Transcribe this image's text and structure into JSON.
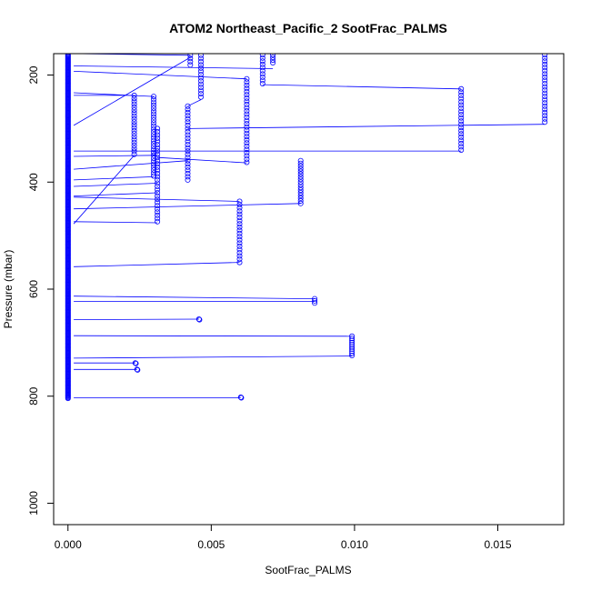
{
  "chart_data": {
    "type": "scatter",
    "title": "ATOM2 Northeast_Pacific_2 SootFrac_PALMS",
    "xlabel": "SootFrac_PALMS",
    "ylabel": "Pressure (mbar)",
    "xlim": [
      -0.0005,
      0.0173
    ],
    "ylim": [
      1040,
      160
    ],
    "y_reversed": true,
    "x_ticks": [
      0.0,
      0.005,
      0.01,
      0.015
    ],
    "x_tick_labels": [
      "0.000",
      "0.005",
      "0.010",
      "0.015"
    ],
    "y_ticks": [
      200,
      400,
      600,
      800,
      1000
    ],
    "y_tick_labels": [
      "200",
      "400",
      "600",
      "800",
      "1000"
    ],
    "grid": false,
    "colors": {
      "series": "#0000ff",
      "axis": "#000000"
    },
    "zero_column": {
      "x": 0.0,
      "p_from": 162,
      "p_to": 805,
      "step": 1.5
    },
    "columns": [
      {
        "x": 0.00231,
        "p_from": 238,
        "p_to": 350,
        "step": 5.5
      },
      {
        "x": 0.00299,
        "p_from": 240,
        "p_to": 390,
        "step": 5.5
      },
      {
        "x": 0.00312,
        "p_from": 300,
        "p_to": 476,
        "step": 6
      },
      {
        "x": 0.00418,
        "p_from": 258,
        "p_to": 400,
        "step": 6
      },
      {
        "x": 0.00427,
        "p_from": 163,
        "p_to": 182,
        "step": 6
      },
      {
        "x": 0.00464,
        "p_from": 163,
        "p_to": 246,
        "step": 6
      },
      {
        "x": 0.00599,
        "p_from": 436,
        "p_to": 550,
        "step": 6
      },
      {
        "x": 0.00624,
        "p_from": 207,
        "p_to": 364,
        "step": 6
      },
      {
        "x": 0.00679,
        "p_from": 162,
        "p_to": 218,
        "step": 6
      },
      {
        "x": 0.00715,
        "p_from": 162,
        "p_to": 180,
        "step": 5
      },
      {
        "x": 0.00812,
        "p_from": 360,
        "p_to": 440,
        "step": 5
      },
      {
        "x": 0.00861,
        "p_from": 618,
        "p_to": 626,
        "step": 4
      },
      {
        "x": 0.00991,
        "p_from": 688,
        "p_to": 725,
        "step": 4
      },
      {
        "x": 0.01372,
        "p_from": 226,
        "p_to": 342,
        "step": 6
      },
      {
        "x": 0.01664,
        "p_from": 162,
        "p_to": 292,
        "step": 6
      }
    ],
    "single_points": [
      [
        0.00457,
        656
      ],
      [
        0.00459,
        657
      ],
      [
        0.00235,
        738
      ],
      [
        0.00237,
        739
      ],
      [
        0.00241,
        750
      ],
      [
        0.00243,
        751
      ],
      [
        0.00603,
        802
      ],
      [
        0.00605,
        803
      ]
    ],
    "connecting_lines": [
      [
        0.0002,
        160,
        0.00427,
        163
      ],
      [
        0.0002,
        183,
        0.00715,
        188
      ],
      [
        0.0002,
        193,
        0.00624,
        207
      ],
      [
        0.0002,
        294,
        0.0043,
        166
      ],
      [
        0.00679,
        218,
        0.01372,
        226
      ],
      [
        0.0002,
        233,
        0.00299,
        240
      ],
      [
        0.0002,
        238,
        0.00231,
        238
      ],
      [
        0.00464,
        246,
        0.00418,
        258
      ],
      [
        0.00418,
        300,
        0.01664,
        292
      ],
      [
        0.0002,
        342,
        0.01372,
        342
      ],
      [
        0.0002,
        352,
        0.00312,
        350
      ],
      [
        0.00312,
        354,
        0.00624,
        364
      ],
      [
        0.0002,
        376,
        0.00418,
        360
      ],
      [
        0.0002,
        396,
        0.00299,
        390
      ],
      [
        0.0002,
        408,
        0.00312,
        402
      ],
      [
        0.0002,
        426,
        0.00312,
        420
      ],
      [
        0.0002,
        478,
        0.00231,
        350
      ],
      [
        0.0002,
        428,
        0.00599,
        436
      ],
      [
        0.0002,
        450,
        0.00812,
        440
      ],
      [
        0.0002,
        474,
        0.00312,
        476
      ],
      [
        0.0002,
        558,
        0.00599,
        550
      ],
      [
        0.0002,
        613,
        0.00861,
        618
      ],
      [
        0.0002,
        623,
        0.00861,
        623
      ],
      [
        0.0002,
        657,
        0.00457,
        656
      ],
      [
        0.0002,
        687,
        0.00991,
        688
      ],
      [
        0.0002,
        729,
        0.00991,
        725
      ],
      [
        0.0002,
        738,
        0.00235,
        738
      ],
      [
        0.0002,
        750,
        0.00241,
        750
      ],
      [
        0.0002,
        803,
        0.00603,
        803
      ]
    ]
  }
}
